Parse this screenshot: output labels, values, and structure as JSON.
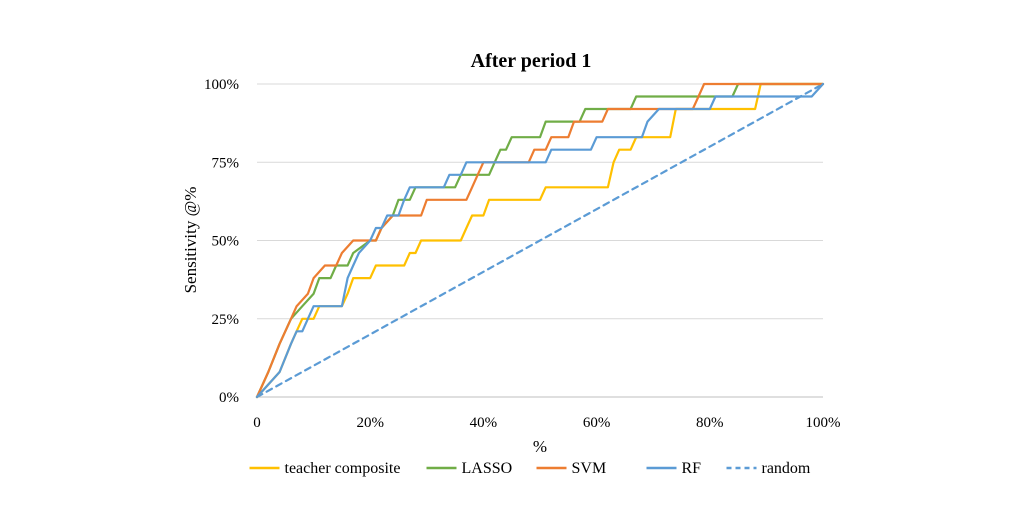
{
  "chart_data": {
    "type": "line",
    "title": "After period 1",
    "xlabel": "%",
    "ylabel": "Sensitivity @%",
    "xlim": [
      0,
      100
    ],
    "ylim": [
      0,
      100
    ],
    "x_ticks": [
      "0",
      "20%",
      "40%",
      "60%",
      "80%",
      "100%"
    ],
    "y_ticks": [
      "0%",
      "25%",
      "50%",
      "75%",
      "100%"
    ],
    "grid": "horizontal",
    "legend_position": "bottom",
    "series": [
      {
        "name": "teacher composite",
        "color": "#FFC000",
        "dash": false,
        "points": [
          [
            0,
            0
          ],
          [
            2,
            4
          ],
          [
            4,
            8
          ],
          [
            6,
            17
          ],
          [
            7,
            21
          ],
          [
            8,
            25
          ],
          [
            10,
            25
          ],
          [
            11,
            29
          ],
          [
            15,
            29
          ],
          [
            16,
            33
          ],
          [
            17,
            38
          ],
          [
            20,
            38
          ],
          [
            21,
            42
          ],
          [
            26,
            42
          ],
          [
            27,
            46
          ],
          [
            28,
            46
          ],
          [
            29,
            50
          ],
          [
            36,
            50
          ],
          [
            37,
            54
          ],
          [
            38,
            58
          ],
          [
            40,
            58
          ],
          [
            41,
            63
          ],
          [
            50,
            63
          ],
          [
            51,
            67
          ],
          [
            62,
            67
          ],
          [
            63,
            75
          ],
          [
            64,
            79
          ],
          [
            66,
            79
          ],
          [
            67,
            83
          ],
          [
            73,
            83
          ],
          [
            74,
            92
          ],
          [
            88,
            92
          ],
          [
            89,
            100
          ],
          [
            100,
            100
          ]
        ]
      },
      {
        "name": "LASSO",
        "color": "#70AD47",
        "dash": false,
        "points": [
          [
            0,
            0
          ],
          [
            2,
            8
          ],
          [
            4,
            17
          ],
          [
            6,
            25
          ],
          [
            8,
            29
          ],
          [
            10,
            33
          ],
          [
            11,
            38
          ],
          [
            13,
            38
          ],
          [
            14,
            42
          ],
          [
            16,
            42
          ],
          [
            17,
            46
          ],
          [
            20,
            50
          ],
          [
            21,
            50
          ],
          [
            22,
            54
          ],
          [
            24,
            58
          ],
          [
            25,
            63
          ],
          [
            27,
            63
          ],
          [
            28,
            67
          ],
          [
            35,
            67
          ],
          [
            36,
            71
          ],
          [
            41,
            71
          ],
          [
            42,
            75
          ],
          [
            43,
            79
          ],
          [
            44,
            79
          ],
          [
            45,
            83
          ],
          [
            50,
            83
          ],
          [
            51,
            88
          ],
          [
            57,
            88
          ],
          [
            58,
            92
          ],
          [
            66,
            92
          ],
          [
            67,
            96
          ],
          [
            84,
            96
          ],
          [
            85,
            100
          ],
          [
            100,
            100
          ]
        ]
      },
      {
        "name": "SVM",
        "color": "#ED7D31",
        "dash": false,
        "points": [
          [
            0,
            0
          ],
          [
            2,
            8
          ],
          [
            4,
            17
          ],
          [
            6,
            25
          ],
          [
            7,
            29
          ],
          [
            9,
            33
          ],
          [
            10,
            38
          ],
          [
            12,
            42
          ],
          [
            14,
            42
          ],
          [
            15,
            46
          ],
          [
            17,
            50
          ],
          [
            21,
            50
          ],
          [
            22,
            54
          ],
          [
            24,
            58
          ],
          [
            29,
            58
          ],
          [
            30,
            63
          ],
          [
            37,
            63
          ],
          [
            38,
            67
          ],
          [
            39,
            71
          ],
          [
            40,
            75
          ],
          [
            48,
            75
          ],
          [
            49,
            79
          ],
          [
            51,
            79
          ],
          [
            52,
            83
          ],
          [
            55,
            83
          ],
          [
            56,
            88
          ],
          [
            61,
            88
          ],
          [
            62,
            92
          ],
          [
            77,
            92
          ],
          [
            78,
            96
          ],
          [
            79,
            100
          ],
          [
            100,
            100
          ]
        ]
      },
      {
        "name": "RF",
        "color": "#5B9BD5",
        "dash": false,
        "points": [
          [
            0,
            0
          ],
          [
            2,
            4
          ],
          [
            4,
            8
          ],
          [
            6,
            17
          ],
          [
            7,
            21
          ],
          [
            8,
            21
          ],
          [
            9,
            25
          ],
          [
            10,
            29
          ],
          [
            15,
            29
          ],
          [
            16,
            38
          ],
          [
            17,
            42
          ],
          [
            18,
            46
          ],
          [
            20,
            50
          ],
          [
            21,
            54
          ],
          [
            22,
            54
          ],
          [
            23,
            58
          ],
          [
            25,
            58
          ],
          [
            26,
            63
          ],
          [
            27,
            67
          ],
          [
            33,
            67
          ],
          [
            34,
            71
          ],
          [
            36,
            71
          ],
          [
            37,
            75
          ],
          [
            51,
            75
          ],
          [
            52,
            79
          ],
          [
            59,
            79
          ],
          [
            60,
            83
          ],
          [
            68,
            83
          ],
          [
            69,
            88
          ],
          [
            71,
            92
          ],
          [
            80,
            92
          ],
          [
            81,
            96
          ],
          [
            98,
            96
          ],
          [
            100,
            100
          ]
        ]
      },
      {
        "name": "random",
        "color": "#5B9BD5",
        "dash": true,
        "points": [
          [
            0,
            0
          ],
          [
            100,
            100
          ]
        ]
      }
    ]
  }
}
